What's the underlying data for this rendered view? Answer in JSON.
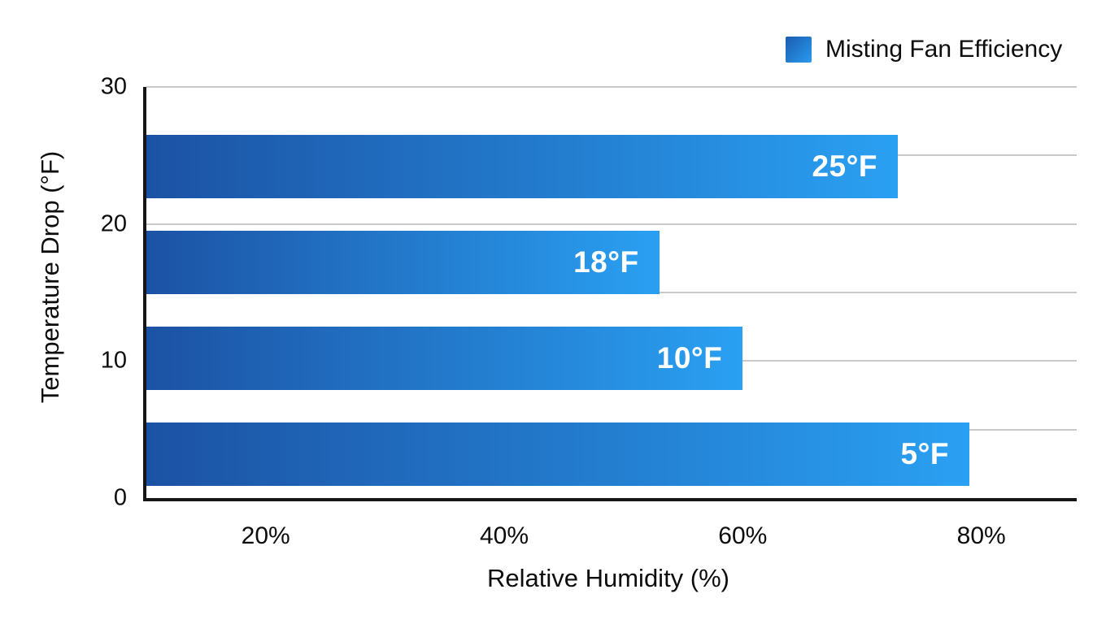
{
  "legend": {
    "label": "Misting Fan Efficiency"
  },
  "colors": {
    "bar_gradient_start": "#1C52A4",
    "bar_gradient_end": "#2AA0F2",
    "legend_swatch_start": "#1A5CB0",
    "legend_swatch_end": "#2B9BEE",
    "gridline": "#C9C9C9",
    "axis_spine": "#161616",
    "text": "#0D0D0D",
    "bar_label_text": "#FFFFFF"
  },
  "chart_data": {
    "type": "bar",
    "orientation": "horizontal",
    "title": "",
    "legend_entries": [
      "Misting Fan Efficiency"
    ],
    "legend_position": "top-right",
    "xlabel": "Relative Humidity (%)",
    "ylabel": "Temperature Drop (°F)",
    "x_range": [
      10,
      88
    ],
    "y_range": [
      0,
      30
    ],
    "grid": "horizontal",
    "grid_step_f": 5,
    "bar_thickness_f": 4.6,
    "x_ticks": [
      {
        "value": 20,
        "label": "20%"
      },
      {
        "value": 40,
        "label": "40%"
      },
      {
        "value": 60,
        "label": "60%"
      },
      {
        "value": 80,
        "label": "80%"
      }
    ],
    "y_ticks": [
      {
        "value": 0,
        "label": "0"
      },
      {
        "value": 10,
        "label": "10"
      },
      {
        "value": 20,
        "label": "20"
      },
      {
        "value": 30,
        "label": "30"
      }
    ],
    "bars": [
      {
        "name": "25F",
        "label": "25°F",
        "temperature_drop_f": 25,
        "y_position_f": 24.2,
        "relative_humidity_pct": 73
      },
      {
        "name": "18F",
        "label": "18°F",
        "temperature_drop_f": 18,
        "y_position_f": 17.2,
        "relative_humidity_pct": 53
      },
      {
        "name": "10F",
        "label": "10°F",
        "temperature_drop_f": 10,
        "y_position_f": 10.2,
        "relative_humidity_pct": 60
      },
      {
        "name": "5F",
        "label": "5°F",
        "temperature_drop_f": 5,
        "y_position_f": 3.2,
        "relative_humidity_pct": 79
      }
    ]
  }
}
